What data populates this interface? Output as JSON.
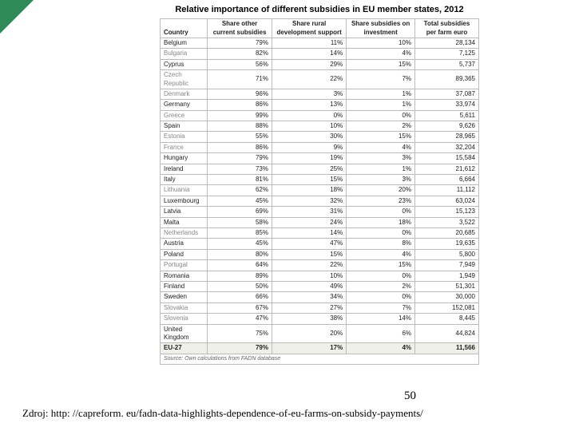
{
  "accent_color": "#2e8b57",
  "table": {
    "title": "Relative importance of different subsidies in EU member states, 2012",
    "columns": [
      "Country",
      "Share other current subsidies",
      "Share rural development support",
      "Share subsidies on investment",
      "Total subsidies per farm euro"
    ],
    "rows": [
      {
        "country": "Belgium",
        "c1": "79%",
        "c2": "11%",
        "c3": "10%",
        "c4": "28,134"
      },
      {
        "country": "Bulgaria",
        "c1": "82%",
        "c2": "14%",
        "c3": "4%",
        "c4": "7,125",
        "dim": true
      },
      {
        "country": "Cyprus",
        "c1": "56%",
        "c2": "29%",
        "c3": "15%",
        "c4": "5,737"
      },
      {
        "country": "Czech Republic",
        "c1": "71%",
        "c2": "22%",
        "c3": "7%",
        "c4": "89,365",
        "dim": true
      },
      {
        "country": "Denmark",
        "c1": "96%",
        "c2": "3%",
        "c3": "1%",
        "c4": "37,087",
        "dim": true
      },
      {
        "country": "Germany",
        "c1": "86%",
        "c2": "13%",
        "c3": "1%",
        "c4": "33,974"
      },
      {
        "country": "Greece",
        "c1": "99%",
        "c2": "0%",
        "c3": "0%",
        "c4": "5,611",
        "dim": true
      },
      {
        "country": "Spain",
        "c1": "88%",
        "c2": "10%",
        "c3": "2%",
        "c4": "9,626"
      },
      {
        "country": "Estonia",
        "c1": "55%",
        "c2": "30%",
        "c3": "15%",
        "c4": "28,965",
        "dim": true
      },
      {
        "country": "France",
        "c1": "86%",
        "c2": "9%",
        "c3": "4%",
        "c4": "32,204",
        "dim": true
      },
      {
        "country": "Hungary",
        "c1": "79%",
        "c2": "19%",
        "c3": "3%",
        "c4": "15,584"
      },
      {
        "country": "Ireland",
        "c1": "73%",
        "c2": "25%",
        "c3": "1%",
        "c4": "21,612"
      },
      {
        "country": "Italy",
        "c1": "81%",
        "c2": "15%",
        "c3": "3%",
        "c4": "6,664"
      },
      {
        "country": "Lithuania",
        "c1": "62%",
        "c2": "18%",
        "c3": "20%",
        "c4": "11,112",
        "dim": true
      },
      {
        "country": "Luxembourg",
        "c1": "45%",
        "c2": "32%",
        "c3": "23%",
        "c4": "63,024"
      },
      {
        "country": "Latvia",
        "c1": "69%",
        "c2": "31%",
        "c3": "0%",
        "c4": "15,123"
      },
      {
        "country": "Malta",
        "c1": "58%",
        "c2": "24%",
        "c3": "18%",
        "c4": "3,522"
      },
      {
        "country": "Netherlands",
        "c1": "85%",
        "c2": "14%",
        "c3": "0%",
        "c4": "20,685",
        "dim": true
      },
      {
        "country": "Austria",
        "c1": "45%",
        "c2": "47%",
        "c3": "8%",
        "c4": "19,635"
      },
      {
        "country": "Poland",
        "c1": "80%",
        "c2": "15%",
        "c3": "4%",
        "c4": "5,800"
      },
      {
        "country": "Portugal",
        "c1": "64%",
        "c2": "22%",
        "c3": "15%",
        "c4": "7,949",
        "dim": true
      },
      {
        "country": "Romania",
        "c1": "89%",
        "c2": "10%",
        "c3": "0%",
        "c4": "1,949"
      },
      {
        "country": "Finland",
        "c1": "50%",
        "c2": "49%",
        "c3": "2%",
        "c4": "51,301"
      },
      {
        "country": "Sweden",
        "c1": "66%",
        "c2": "34%",
        "c3": "0%",
        "c4": "30,000"
      },
      {
        "country": "Slovakia",
        "c1": "67%",
        "c2": "27%",
        "c3": "7%",
        "c4": "152,081",
        "dim": true
      },
      {
        "country": "Slovenia",
        "c1": "47%",
        "c2": "38%",
        "c3": "14%",
        "c4": "8,445",
        "dim": true
      },
      {
        "country": "United Kingdom",
        "c1": "75%",
        "c2": "20%",
        "c3": "6%",
        "c4": "44,824"
      }
    ],
    "eu_row": {
      "country": "EU-27",
      "c1": "79%",
      "c2": "17%",
      "c3": "4%",
      "c4": "11,566"
    },
    "source": "Source: Own calculations from FADN database"
  },
  "page_number": "50",
  "citation": "Zdroj: http: //capreform. eu/fadn-data-highlights-dependence-of-eu-farms-on-subsidy-payments/"
}
